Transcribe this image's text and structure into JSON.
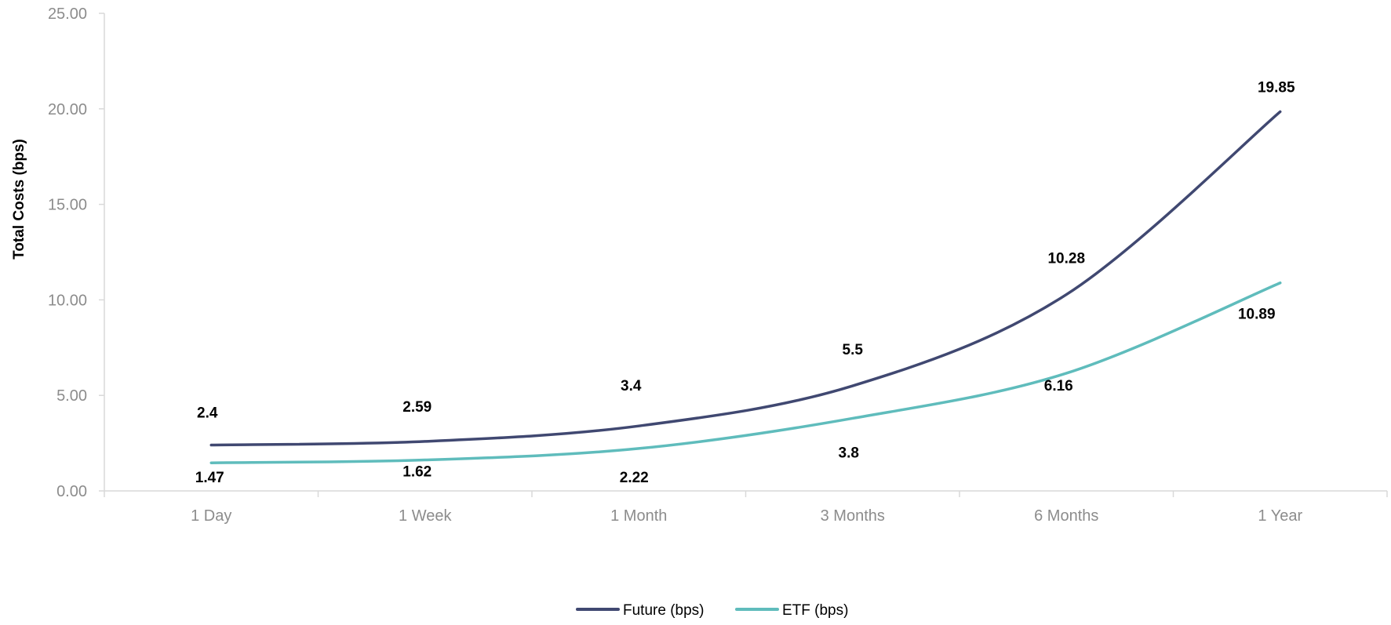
{
  "chart_data": {
    "type": "line",
    "title": "",
    "xlabel": "",
    "ylabel": "Total Costs (bps)",
    "categories": [
      "1 Day",
      "1 Week",
      "1 Month",
      "3 Months",
      "6 Months",
      "1 Year"
    ],
    "ylim": [
      0,
      25
    ],
    "yticks": [
      "0.00",
      "5.00",
      "10.00",
      "15.00",
      "20.00",
      "25.00"
    ],
    "ytick_values": [
      0,
      5,
      10,
      15,
      20,
      25
    ],
    "grid": false,
    "smooth": true,
    "legend": {
      "position": "bottom"
    },
    "series": [
      {
        "name": "Future (bps)",
        "color": "#404871",
        "values": [
          2.4,
          2.59,
          3.4,
          5.5,
          10.28,
          19.85
        ],
        "labels": [
          "2.4",
          "2.59",
          "3.4",
          "5.5",
          "10.28",
          "19.85"
        ]
      },
      {
        "name": "ETF (bps)",
        "color": "#5fbcbc",
        "values": [
          1.47,
          1.62,
          2.22,
          3.8,
          6.16,
          10.89
        ],
        "labels": [
          "1.47",
          "1.62",
          "2.22",
          "3.8",
          "6.16",
          "10.89"
        ]
      }
    ]
  }
}
